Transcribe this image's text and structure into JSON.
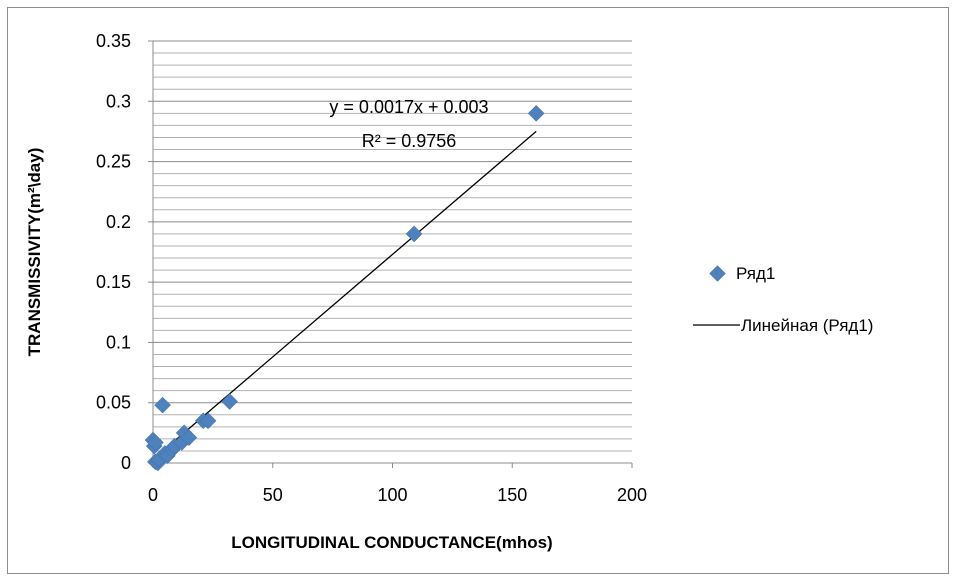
{
  "chart_data": {
    "type": "scatter",
    "xlabel": "LONGITUDINAL CONDUCTANCE(mhos)",
    "ylabel": "TRANSMISSIVITY(m²\\day)",
    "xlim": [
      0,
      200
    ],
    "ylim": [
      0,
      0.35
    ],
    "x_ticks": [
      "0",
      "50",
      "100",
      "150",
      "200"
    ],
    "y_ticks": [
      "0",
      "0.05",
      "0.1",
      "0.15",
      "0.2",
      "0.25",
      "0.3",
      "0.35"
    ],
    "x_tick_values": [
      0,
      50,
      100,
      150,
      200
    ],
    "y_tick_values": [
      0,
      0.05,
      0.1,
      0.15,
      0.2,
      0.25,
      0.3,
      0.35
    ],
    "minor_grid_step": 0.01,
    "grid": true,
    "legend_position": "right",
    "marker_color": "#4f81bd",
    "series": [
      {
        "name": "Ряд1",
        "points": [
          [
            0,
            0.019
          ],
          [
            0.5,
            0.014
          ],
          [
            1,
            0.017
          ],
          [
            1,
            0.001
          ],
          [
            2,
            0.0
          ],
          [
            2.5,
            0.003
          ],
          [
            4,
            0.048
          ],
          [
            5,
            0.008
          ],
          [
            6,
            0.006
          ],
          [
            8,
            0.011
          ],
          [
            9,
            0.014
          ],
          [
            12,
            0.017
          ],
          [
            13,
            0.025
          ],
          [
            15,
            0.021
          ],
          [
            21,
            0.035
          ],
          [
            23,
            0.035
          ],
          [
            32,
            0.051
          ],
          [
            109,
            0.19
          ],
          [
            160,
            0.29
          ]
        ]
      }
    ],
    "trendline": {
      "name": "Линейная (Ряд1)",
      "slope": 0.0017,
      "intercept": 0.003,
      "x_range": [
        0,
        160
      ],
      "equation": "y = 0.0017x + 0.003",
      "r_squared": "R² = 0.9756"
    }
  }
}
